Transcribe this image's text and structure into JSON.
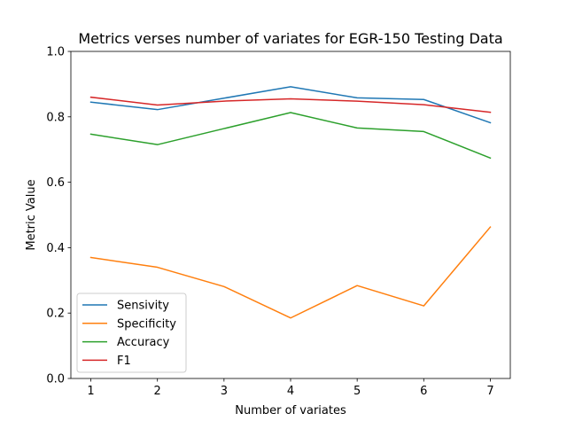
{
  "chart_data": {
    "type": "line",
    "title": "Metrics verses number of variates for EGR-150 Testing Data",
    "xlabel": "Number of variates",
    "ylabel": "Metric Value",
    "x": [
      1,
      2,
      3,
      4,
      5,
      6,
      7
    ],
    "xticks": [
      1,
      2,
      3,
      4,
      5,
      6,
      7
    ],
    "xlim": [
      0.7,
      7.3
    ],
    "ylim": [
      0.0,
      1.0
    ],
    "yticks": [
      0.0,
      0.2,
      0.4,
      0.6,
      0.8,
      1.0
    ],
    "ytick_labels": [
      "0.0",
      "0.2",
      "0.4",
      "0.6",
      "0.8",
      "1.0"
    ],
    "grid": false,
    "legend_position": "lower-left",
    "series": [
      {
        "name": "Sensivity",
        "color": "#1f77b4",
        "values": [
          0.845,
          0.822,
          0.857,
          0.892,
          0.858,
          0.853,
          0.782
        ]
      },
      {
        "name": "Specificity",
        "color": "#ff7f0e",
        "values": [
          0.37,
          0.34,
          0.281,
          0.185,
          0.284,
          0.222,
          0.463
        ]
      },
      {
        "name": "Accuracy",
        "color": "#2ca02c",
        "values": [
          0.747,
          0.715,
          0.764,
          0.813,
          0.766,
          0.755,
          0.674
        ]
      },
      {
        "name": "F1",
        "color": "#d62728",
        "values": [
          0.86,
          0.836,
          0.848,
          0.855,
          0.848,
          0.837,
          0.814
        ]
      }
    ]
  }
}
